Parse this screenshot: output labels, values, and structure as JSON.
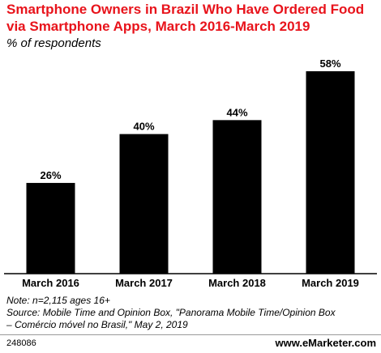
{
  "title": "Smartphone Owners in Brazil Who Have Ordered Food via Smartphone Apps, March 2016-March 2019",
  "subtitle": "% of respondents",
  "note_lines": [
    "Note: n=2,115 ages 16+",
    "Source: Mobile Time and Opinion Box, \"Panorama Mobile Time/Opinion Box",
    "– Comércio móvel no Brasil,\" May 2, 2019"
  ],
  "chart_id": "248086",
  "brand": "www.eMarketer.com",
  "colors": {
    "title": "#e8131b",
    "bar": "#000000",
    "axis": "#000000"
  },
  "chart_data": {
    "type": "bar",
    "categories": [
      "March 2016",
      "March 2017",
      "March 2018",
      "March 2019"
    ],
    "values": [
      26,
      40,
      44,
      58
    ],
    "value_labels": [
      "26%",
      "40%",
      "44%",
      "58%"
    ],
    "ylim": [
      0,
      58
    ],
    "grid": false,
    "legend": "none"
  }
}
